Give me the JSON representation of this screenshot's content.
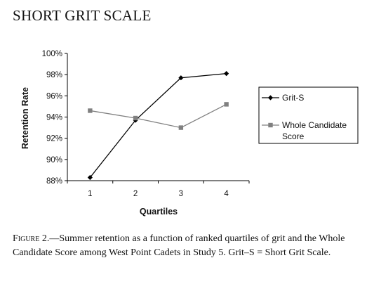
{
  "heading": "SHORT GRIT SCALE",
  "caption": {
    "label": "Figure 2.",
    "text": "—Summer retention as a function of ranked quartiles of grit and the Whole Candidate Score among West Point Cadets in Study 5. Grit–S = Short Grit Scale."
  },
  "chart_data": {
    "type": "line",
    "xlabel": "Quartiles",
    "ylabel": "Retention Rate",
    "categories": [
      "1",
      "2",
      "3",
      "4"
    ],
    "ylim": [
      88,
      100
    ],
    "yticks": [
      88,
      90,
      92,
      94,
      96,
      98,
      100
    ],
    "ytick_labels": [
      "88%",
      "90%",
      "92%",
      "94%",
      "96%",
      "98%",
      "100%"
    ],
    "grid": false,
    "legend_position": "right",
    "series": [
      {
        "name": "Grit-S",
        "values": [
          88.3,
          93.7,
          97.7,
          98.1
        ],
        "color": "#000000",
        "marker": "diamond"
      },
      {
        "name": "Whole Candidate Score",
        "values": [
          94.6,
          93.9,
          93.0,
          95.2
        ],
        "color": "#808080",
        "marker": "square"
      }
    ]
  }
}
